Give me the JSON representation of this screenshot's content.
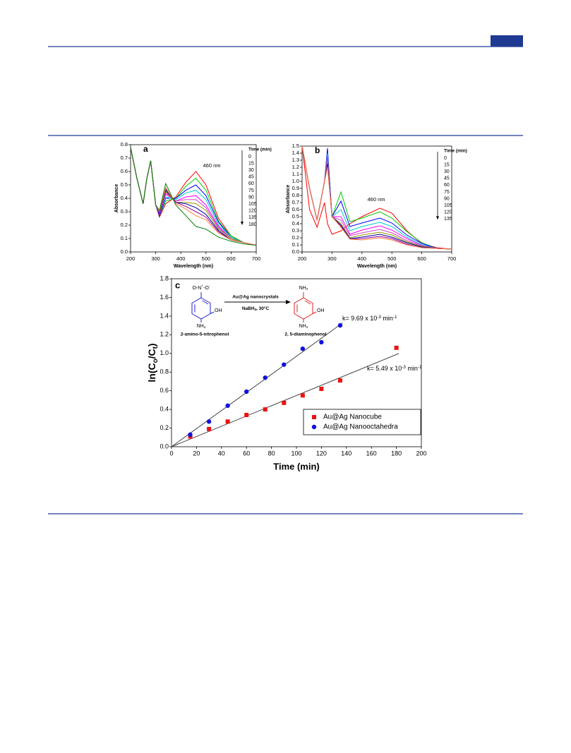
{
  "chart_data": [
    {
      "type": "line",
      "panel": "a",
      "xlabel": "Wavelength (nm)",
      "ylabel": "Absorbance",
      "annotation": "460 nm",
      "legend_title": "Time (min)",
      "x": [
        200,
        225,
        250,
        265,
        280,
        300,
        315,
        340,
        380,
        420,
        460,
        500,
        550,
        600,
        650,
        700
      ],
      "xlim": [
        200,
        700
      ],
      "xticks": [
        200,
        300,
        400,
        500,
        600,
        700
      ],
      "ylim": [
        0,
        0.8
      ],
      "yticks": [
        {
          "value": 0,
          "label": "0.0"
        },
        0.1,
        0.2,
        0.3,
        0.4,
        0.5,
        0.6,
        0.7,
        0.8
      ],
      "series": [
        {
          "name": "0",
          "color": "#ff0000",
          "values": [
            0.78,
            0.55,
            0.36,
            0.55,
            0.68,
            0.35,
            0.26,
            0.36,
            0.41,
            0.52,
            0.6,
            0.5,
            0.25,
            0.12,
            0.07,
            0.05
          ]
        },
        {
          "name": "15",
          "color": "#00cc00",
          "values": [
            0.78,
            0.55,
            0.36,
            0.55,
            0.68,
            0.35,
            0.27,
            0.38,
            0.4,
            0.49,
            0.55,
            0.46,
            0.23,
            0.12,
            0.07,
            0.05
          ]
        },
        {
          "name": "30",
          "color": "#0000ff",
          "values": [
            0.78,
            0.55,
            0.36,
            0.55,
            0.68,
            0.35,
            0.27,
            0.4,
            0.4,
            0.46,
            0.5,
            0.42,
            0.22,
            0.11,
            0.07,
            0.05
          ]
        },
        {
          "name": "45",
          "color": "#00cccc",
          "values": [
            0.78,
            0.55,
            0.36,
            0.55,
            0.68,
            0.35,
            0.28,
            0.41,
            0.39,
            0.44,
            0.46,
            0.39,
            0.2,
            0.11,
            0.07,
            0.05
          ]
        },
        {
          "name": "60",
          "color": "#ff00ff",
          "values": [
            0.78,
            0.55,
            0.36,
            0.55,
            0.68,
            0.35,
            0.28,
            0.43,
            0.38,
            0.41,
            0.42,
            0.35,
            0.19,
            0.1,
            0.07,
            0.05
          ]
        },
        {
          "name": "75",
          "color": "#cc44cc",
          "values": [
            0.78,
            0.55,
            0.36,
            0.55,
            0.68,
            0.35,
            0.29,
            0.44,
            0.38,
            0.39,
            0.39,
            0.33,
            0.18,
            0.1,
            0.07,
            0.05
          ]
        },
        {
          "name": "90",
          "color": "#999900",
          "values": [
            0.78,
            0.55,
            0.36,
            0.55,
            0.68,
            0.35,
            0.29,
            0.45,
            0.37,
            0.37,
            0.36,
            0.31,
            0.17,
            0.1,
            0.07,
            0.05
          ]
        },
        {
          "name": "105",
          "color": "#000099",
          "values": [
            0.78,
            0.55,
            0.36,
            0.55,
            0.68,
            0.35,
            0.29,
            0.46,
            0.37,
            0.36,
            0.33,
            0.28,
            0.16,
            0.09,
            0.07,
            0.05
          ]
        },
        {
          "name": "120",
          "color": "#990099",
          "values": [
            0.78,
            0.55,
            0.36,
            0.55,
            0.68,
            0.35,
            0.3,
            0.47,
            0.37,
            0.34,
            0.3,
            0.26,
            0.15,
            0.09,
            0.07,
            0.05
          ]
        },
        {
          "name": "135",
          "color": "#ff8040",
          "values": [
            0.78,
            0.55,
            0.36,
            0.55,
            0.68,
            0.35,
            0.3,
            0.48,
            0.36,
            0.32,
            0.27,
            0.24,
            0.14,
            0.09,
            0.07,
            0.05
          ]
        },
        {
          "name": "180",
          "color": "#008000",
          "values": [
            0.78,
            0.55,
            0.36,
            0.55,
            0.68,
            0.35,
            0.31,
            0.51,
            0.35,
            0.27,
            0.19,
            0.17,
            0.11,
            0.08,
            0.06,
            0.05
          ]
        }
      ]
    },
    {
      "type": "line",
      "panel": "b",
      "xlabel": "Wavelength (nm)",
      "ylabel": "Absorbance",
      "annotation": "460 nm",
      "legend_title": "Time (min)",
      "x": [
        200,
        225,
        250,
        275,
        285,
        300,
        330,
        360,
        400,
        460,
        500,
        550,
        600,
        650,
        700
      ],
      "xlim": [
        200,
        700
      ],
      "xticks": [
        200,
        300,
        400,
        500,
        600,
        700
      ],
      "ylim": [
        0,
        1.5
      ],
      "yticks": [
        {
          "value": 0,
          "label": "0.0"
        },
        0.1,
        0.2,
        0.3,
        0.4,
        0.5,
        0.6,
        0.7,
        0.8,
        0.9,
        {
          "value": 1,
          "label": "1.0"
        },
        1.1,
        1.2,
        1.3,
        1.4,
        1.5
      ],
      "series": [
        {
          "name": "0",
          "color": "#ff0000",
          "values": [
            1.5,
            0.6,
            0.35,
            0.7,
            0.4,
            0.25,
            0.3,
            0.4,
            0.5,
            0.62,
            0.55,
            0.3,
            0.12,
            0.06,
            0.04
          ]
        },
        {
          "name": "15",
          "color": "#00cc00",
          "values": [
            1.5,
            0.9,
            0.45,
            1.0,
            1.45,
            0.5,
            0.85,
            0.43,
            0.48,
            0.57,
            0.48,
            0.29,
            0.13,
            0.05,
            0.04
          ]
        },
        {
          "name": "30",
          "color": "#0000ff",
          "values": [
            1.5,
            0.9,
            0.45,
            1.0,
            1.47,
            0.5,
            0.72,
            0.36,
            0.41,
            0.48,
            0.41,
            0.24,
            0.12,
            0.05,
            0.04
          ]
        },
        {
          "name": "45",
          "color": "#00cccc",
          "values": [
            1.5,
            0.9,
            0.45,
            1.0,
            1.4,
            0.5,
            0.6,
            0.3,
            0.36,
            0.42,
            0.36,
            0.21,
            0.1,
            0.05,
            0.04
          ]
        },
        {
          "name": "60",
          "color": "#ff00ff",
          "values": [
            1.5,
            0.9,
            0.45,
            1.0,
            1.35,
            0.5,
            0.5,
            0.25,
            0.31,
            0.37,
            0.31,
            0.19,
            0.09,
            0.05,
            0.04
          ]
        },
        {
          "name": "75",
          "color": "#cc44cc",
          "values": [
            1.5,
            0.9,
            0.45,
            1.0,
            1.3,
            0.5,
            0.45,
            0.23,
            0.27,
            0.32,
            0.27,
            0.16,
            0.08,
            0.05,
            0.04
          ]
        },
        {
          "name": "90",
          "color": "#999900",
          "values": [
            1.5,
            0.9,
            0.45,
            1.0,
            1.28,
            0.5,
            0.4,
            0.2,
            0.24,
            0.28,
            0.24,
            0.14,
            0.08,
            0.05,
            0.04
          ]
        },
        {
          "name": "105",
          "color": "#000099",
          "values": [
            1.5,
            0.9,
            0.45,
            1.0,
            1.25,
            0.5,
            0.38,
            0.19,
            0.21,
            0.25,
            0.21,
            0.13,
            0.07,
            0.05,
            0.04
          ]
        },
        {
          "name": "120",
          "color": "#990099",
          "values": [
            1.5,
            0.9,
            0.45,
            1.0,
            1.22,
            0.5,
            0.36,
            0.18,
            0.19,
            0.22,
            0.19,
            0.11,
            0.06,
            0.05,
            0.04
          ]
        },
        {
          "name": "135",
          "color": "#ff8040",
          "values": [
            1.5,
            0.9,
            0.45,
            1.0,
            1.2,
            0.5,
            0.35,
            0.18,
            0.17,
            0.2,
            0.17,
            0.1,
            0.06,
            0.05,
            0.04
          ]
        }
      ]
    },
    {
      "type": "scatter",
      "panel": "c",
      "xlabel": "Time (min)",
      "ylabel": [
        {
          "t": "ln(C"
        },
        {
          "t": "o",
          "sub": true
        },
        {
          "t": "/C"
        },
        {
          "t": "t",
          "sub": true
        },
        {
          "t": ")"
        }
      ],
      "xlim": [
        0,
        200
      ],
      "xticks": [
        0,
        20,
        40,
        60,
        80,
        100,
        120,
        140,
        160,
        180,
        200
      ],
      "ylim": [
        0,
        1.8
      ],
      "yticks": [
        {
          "value": 0,
          "label": "0.0"
        },
        0.2,
        0.4,
        0.6,
        0.8,
        {
          "value": 1,
          "label": "1.0"
        },
        1.2,
        1.4,
        1.6,
        1.8
      ],
      "legend": "bottom-right",
      "series": [
        {
          "name": "Au@Ag Nanocube",
          "color": "#ee1111",
          "marker": "square",
          "x": [
            15,
            30,
            45,
            60,
            75,
            90,
            105,
            120,
            135,
            180
          ],
          "values": [
            0.11,
            0.19,
            0.27,
            0.34,
            0.4,
            0.47,
            0.55,
            0.62,
            0.71,
            1.06
          ],
          "fit": {
            "slope": 0.00549,
            "x_end": 182,
            "label": [
              {
                "t": "k= 5.49 x 10"
              },
              {
                "t": "-3",
                "sup": true
              },
              {
                "t": " min"
              },
              {
                "t": "-1",
                "sup": true
              }
            ]
          }
        },
        {
          "name": "Au@Ag Nanooctahedra",
          "color": "#1111dd",
          "marker": "circle",
          "x": [
            15,
            30,
            45,
            60,
            75,
            90,
            105,
            120,
            135
          ],
          "values": [
            0.13,
            0.27,
            0.44,
            0.59,
            0.74,
            0.88,
            1.05,
            1.12,
            1.3
          ],
          "fit": {
            "slope": 0.00969,
            "x_end": 137,
            "label": [
              {
                "t": "k= 9.69 x 10"
              },
              {
                "t": "-3",
                "sup": true
              },
              {
                "t": " min"
              },
              {
                "t": "-1",
                "sup": true
              }
            ]
          }
        }
      ],
      "scheme": {
        "reagent_top": "Au@Ag nanocrystals",
        "reagent_bottom": [
          {
            "t": "NaBH"
          },
          {
            "t": "4",
            "sub": true
          },
          {
            "t": ", 30°C"
          }
        ],
        "reactant_name": "2-amino-5-nitrophenol",
        "product_name": "2, 5-diaminophenol",
        "reactant_top": [
          {
            "t": "O-N"
          },
          {
            "t": "+",
            "sup": true
          },
          {
            "t": "-O"
          },
          {
            "t": "-",
            "sup": true
          }
        ],
        "reactant_oh": "OH",
        "reactant_bottom": [
          {
            "t": "NH"
          },
          {
            "t": "2",
            "sub": true
          }
        ],
        "product_top": [
          {
            "t": "NH"
          },
          {
            "t": "2",
            "sub": true
          }
        ],
        "product_oh": "OH",
        "product_bottom": [
          {
            "t": "NH"
          },
          {
            "t": "2",
            "sub": true
          }
        ]
      }
    }
  ]
}
